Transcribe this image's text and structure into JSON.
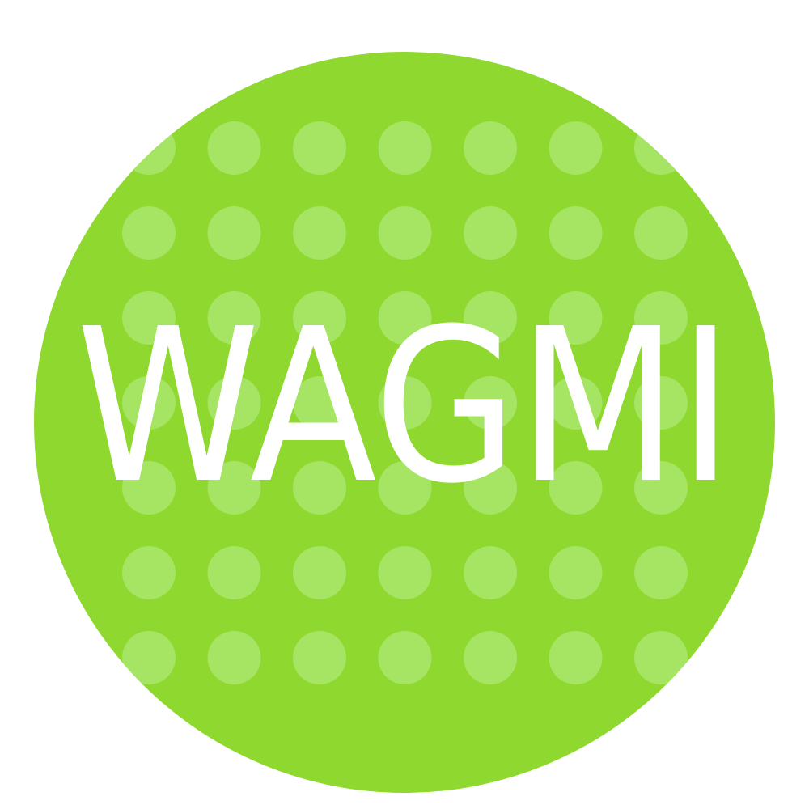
{
  "logo": {
    "wordmark": "WAGMI",
    "colors": {
      "background": "#ffffff",
      "circle": "#8fd82f",
      "dots": "#a6e463",
      "text": "#ffffff"
    }
  }
}
